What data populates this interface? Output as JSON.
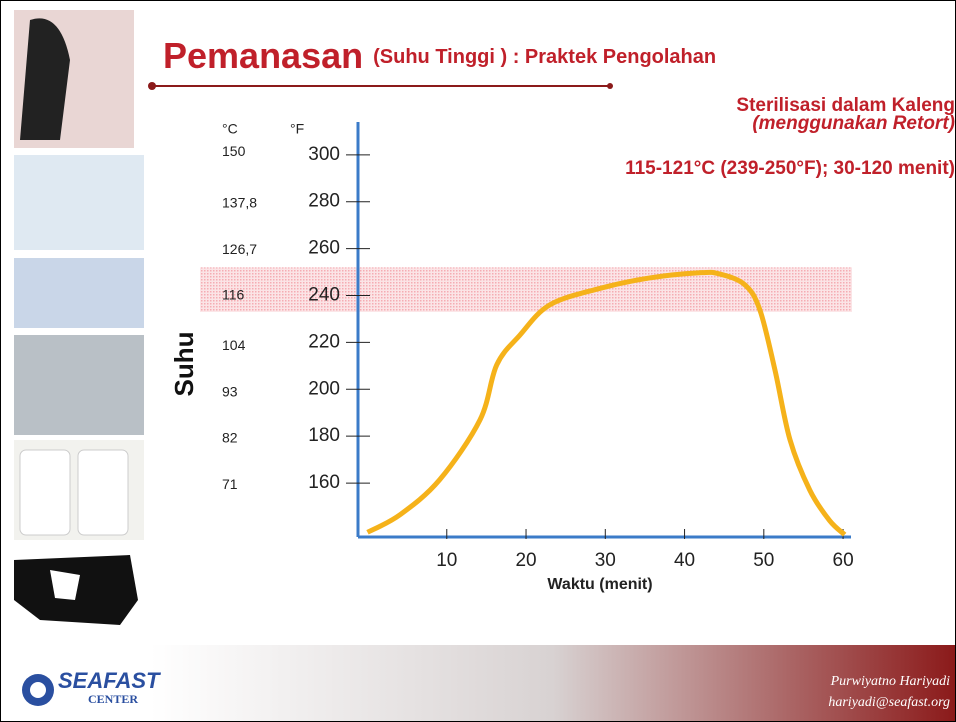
{
  "slide": {
    "title_main": "Pemanasan",
    "title_rest": "(Suhu Tinggi ) : Praktek Pengolahan",
    "subtitle_line1": "Sterilisasi dalam Kaleng",
    "subtitle_line2": "(menggunakan Retort)",
    "condition": "115-121°C (239-250°F); 30-120 menit)",
    "author": "Purwiyatno Hariyadi",
    "email": "hariyadi@seafast.org",
    "logo_top": "SEAFAST",
    "logo_bottom": "CENTER"
  },
  "chart_data": {
    "type": "line",
    "y_unit_label": "°F",
    "y2_unit_label": "°C",
    "ylabel": "Suhu",
    "xlabel": "Waktu (menit)",
    "x": [
      0,
      4.1,
      9.1,
      14.2,
      16.3,
      19.2,
      23,
      29.3,
      35.6,
      41.9,
      44.4,
      47.6,
      49.5,
      51.4,
      53.3,
      55.8,
      58.3,
      60.2
    ],
    "series": [
      {
        "name": "Suhu",
        "color": "#f5b21a",
        "values": [
          139,
          146.5,
          161.4,
          187,
          210.4,
          223,
          236,
          243,
          247.5,
          249.7,
          249.2,
          244.6,
          233.9,
          208.3,
          178.5,
          157,
          144,
          138
        ]
      }
    ],
    "xlim": [
      -1.2,
      61
    ],
    "xticks": [
      10,
      20,
      30,
      40,
      50,
      60
    ],
    "ylim": [
      137,
      314
    ],
    "yticks": [
      160,
      180,
      200,
      220,
      240,
      260,
      280,
      300
    ],
    "y2lim": [
      58.3,
      156.7
    ],
    "y2ticks": [
      71,
      82,
      93,
      104,
      116,
      {
        "value": 126.7,
        "label": "126,7"
      },
      {
        "value": 137.8,
        "label": "137,8"
      },
      150
    ],
    "band": {
      "from": 233,
      "to": 252,
      "color": "#f4a3ab"
    },
    "axis_color": "#3b7bc8"
  }
}
